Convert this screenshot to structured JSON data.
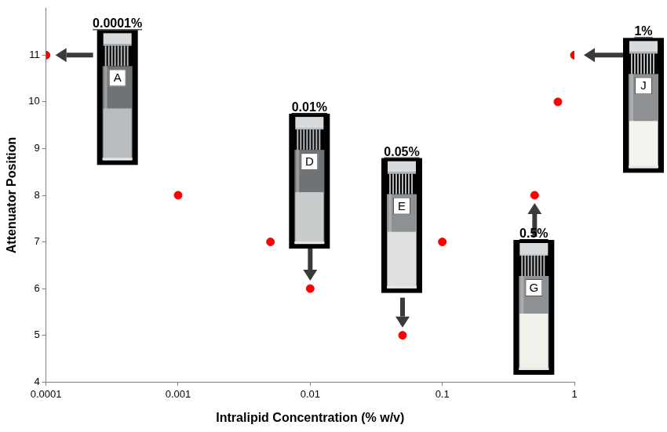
{
  "chart_data": {
    "type": "scatter",
    "x_label": "Intralipid Concentration (% w/v)",
    "y_label": "Attenuator Position",
    "x": [
      0.0001,
      0.001,
      0.005,
      0.01,
      0.05,
      0.1,
      0.5,
      0.75,
      1
    ],
    "values": [
      11,
      8,
      7,
      6,
      5,
      7,
      8,
      10,
      11
    ],
    "color": "#ff0000",
    "marker": "circle",
    "log": "x",
    "xlim": [
      0.0001,
      1
    ],
    "xticks": [
      0.0001,
      0.001,
      0.01,
      0.1,
      1
    ],
    "ylim": [
      4,
      12
    ],
    "yticks": [
      4,
      5,
      6,
      7,
      8,
      9,
      10,
      11
    ],
    "grid": false,
    "annotations": [
      {
        "text": "0.0001%",
        "letter": "A",
        "x": 0.0001,
        "y": 11
      },
      {
        "text": "0.01%",
        "letter": "D",
        "x": 0.01,
        "y": 6
      },
      {
        "text": "0.05%",
        "letter": "E",
        "x": 0.05,
        "y": 5
      },
      {
        "text": "0.5%",
        "letter": "G",
        "x": 0.5,
        "y": 8
      },
      {
        "text": "1%",
        "letter": "J",
        "x": 1,
        "y": 11
      }
    ]
  }
}
